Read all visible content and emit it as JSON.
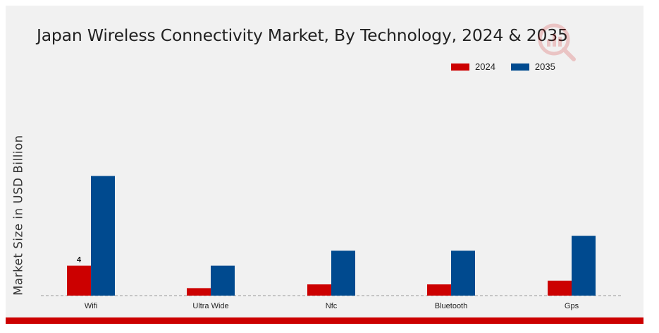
{
  "chart_data": {
    "type": "bar",
    "title": "Japan Wireless Connectivity Market, By Technology, 2024 & 2035",
    "xlabel": "",
    "ylabel": "Market Size in USD Billion",
    "categories": [
      "Wifi",
      "Ultra Wide",
      "Nfc",
      "Bluetooth",
      "Gps"
    ],
    "series": [
      {
        "name": "2024",
        "color": "#cc0000",
        "values": [
          4.0,
          1.0,
          1.5,
          1.5,
          2.0
        ]
      },
      {
        "name": "2035",
        "color": "#004a8f",
        "values": [
          16.0,
          4.0,
          6.0,
          6.0,
          8.0
        ]
      }
    ],
    "data_labels": [
      {
        "series": "2024",
        "category": "Wifi",
        "text": "4"
      }
    ],
    "ylim": [
      0,
      24
    ],
    "grid": false,
    "legend_position": "top-right",
    "baseline_style": "dashed"
  }
}
